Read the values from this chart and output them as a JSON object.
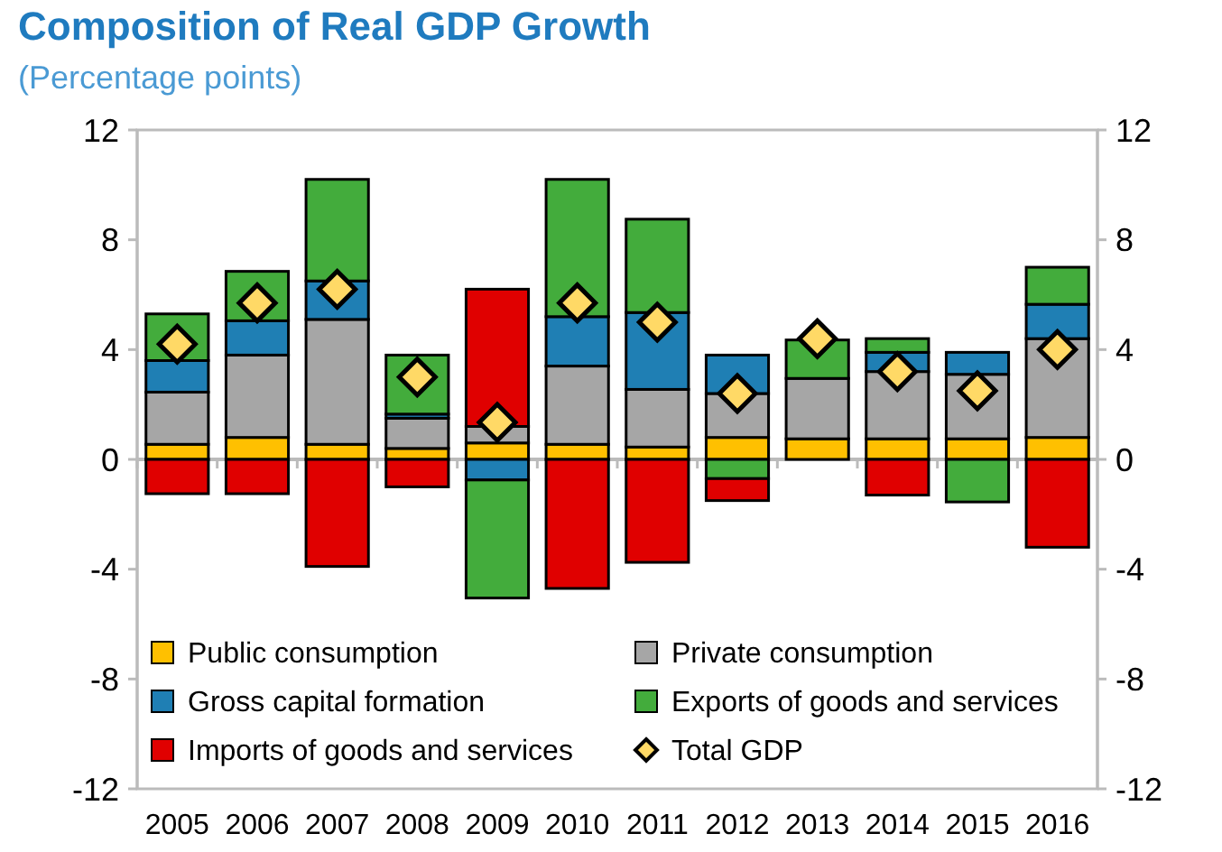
{
  "chart_data": {
    "type": "bar",
    "title": "Composition of Real GDP Growth",
    "subtitle": "(Percentage points)",
    "stacked": true,
    "categories": [
      "2005",
      "2006",
      "2007",
      "2008",
      "2009",
      "2010",
      "2011",
      "2012",
      "2013",
      "2014",
      "2015",
      "2016"
    ],
    "series": [
      {
        "name": "Public consumption",
        "color": "#ffc000",
        "values": [
          0.55,
          0.8,
          0.55,
          0.4,
          0.6,
          0.55,
          0.45,
          0.8,
          0.75,
          0.75,
          0.75,
          0.8
        ]
      },
      {
        "name": "Private consumption",
        "color": "#a6a6a6",
        "values": [
          1.9,
          3.0,
          4.55,
          1.1,
          0.6,
          2.85,
          2.1,
          1.6,
          2.2,
          2.45,
          2.35,
          3.6
        ]
      },
      {
        "name": "Gross capital formation",
        "color": "#1f7fb4",
        "values": [
          1.15,
          1.25,
          1.4,
          0.15,
          -0.75,
          1.8,
          2.8,
          1.4,
          0,
          0.7,
          0.8,
          1.25
        ]
      },
      {
        "name": "Exports of goods and services",
        "color": "#43ac3c",
        "values": [
          1.7,
          1.8,
          3.7,
          2.15,
          -4.3,
          5.0,
          3.4,
          -0.7,
          1.4,
          0.5,
          -1.55,
          1.35
        ]
      },
      {
        "name": "Imports of goods and services",
        "color": "#e00000",
        "values": [
          -1.25,
          -1.25,
          -3.9,
          -1.0,
          5.0,
          -4.7,
          -3.75,
          -0.8,
          0,
          -1.3,
          0,
          -3.2
        ]
      },
      {
        "name": "Total GDP",
        "type": "scatter",
        "marker": "diamond",
        "color": "#ffd966",
        "values": [
          4.2,
          5.7,
          6.2,
          3.0,
          1.35,
          5.7,
          5.0,
          2.4,
          4.4,
          3.2,
          2.5,
          4.0
        ]
      }
    ],
    "ylim": [
      -12,
      12
    ],
    "yticks": [
      -12,
      -8,
      -4,
      0,
      4,
      8,
      12
    ],
    "y2lim": [
      -12,
      12
    ],
    "y2ticks": [
      -12,
      -8,
      -4,
      0,
      4,
      8,
      12
    ],
    "legend": "bottom"
  }
}
